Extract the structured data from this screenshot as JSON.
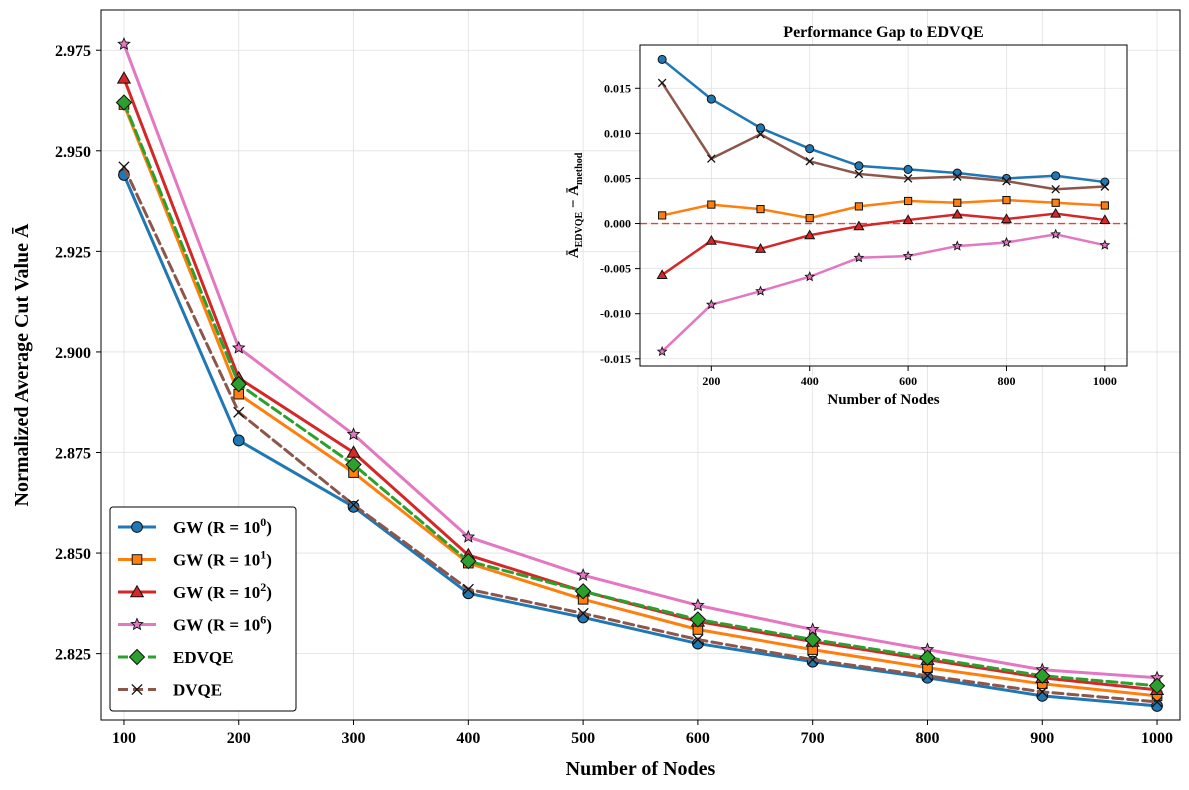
{
  "chart_data": [
    {
      "type": "line",
      "title": "",
      "xlabel": "Number of Nodes",
      "ylabel": "Normalized Average Cut Value Ā",
      "x": [
        100,
        200,
        300,
        400,
        500,
        600,
        700,
        800,
        900,
        1000
      ],
      "xlim": [
        80,
        1020
      ],
      "ylim": [
        2.8085,
        2.985
      ],
      "xticks": [
        100,
        200,
        300,
        400,
        500,
        600,
        700,
        800,
        900,
        1000
      ],
      "yticks": [
        2.825,
        2.85,
        2.875,
        2.9,
        2.925,
        2.95,
        2.975
      ],
      "grid": true,
      "legend_position": "lower-left",
      "series": [
        {
          "name": "GW (R = 10⁰)",
          "legend_base": "GW (R = 10",
          "legend_exp": "0",
          "legend_end": ")",
          "color": "#1f77b4",
          "dash": "solid",
          "marker": "circle",
          "values": [
            2.944,
            2.878,
            2.8615,
            2.84,
            2.834,
            2.8275,
            2.823,
            2.819,
            2.8145,
            2.812
          ]
        },
        {
          "name": "GW (R = 10¹)",
          "legend_base": "GW (R = 10",
          "legend_exp": "1",
          "legend_end": ")",
          "color": "#ff7f0e",
          "dash": "solid",
          "marker": "square",
          "values": [
            2.9615,
            2.8895,
            2.87,
            2.8475,
            2.8385,
            2.831,
            2.826,
            2.8215,
            2.8175,
            2.8145
          ]
        },
        {
          "name": "GW (R = 10²)",
          "legend_base": "GW (R = 10",
          "legend_exp": "2",
          "legend_end": ")",
          "color": "#d62728",
          "dash": "solid",
          "marker": "triangle",
          "values": [
            2.968,
            2.8935,
            2.875,
            2.8495,
            2.8405,
            2.833,
            2.828,
            2.8235,
            2.819,
            2.816
          ]
        },
        {
          "name": "GW (R = 10⁶)",
          "legend_base": "GW (R = 10",
          "legend_exp": "6",
          "legend_end": ")",
          "color": "#e377c2",
          "dash": "solid",
          "marker": "star",
          "values": [
            2.9765,
            2.901,
            2.8795,
            2.854,
            2.8445,
            2.837,
            2.831,
            2.826,
            2.821,
            2.819
          ]
        },
        {
          "name": "EDVQE",
          "legend_base": "EDVQE",
          "legend_exp": "",
          "legend_end": "",
          "color": "#2ca02c",
          "dash": "dashed",
          "marker": "diamond",
          "values": [
            2.962,
            2.892,
            2.872,
            2.848,
            2.8405,
            2.8335,
            2.8285,
            2.824,
            2.8195,
            2.817
          ]
        },
        {
          "name": "DVQE",
          "legend_base": "DVQE",
          "legend_exp": "",
          "legend_end": "",
          "color": "#8c564b",
          "dash": "dashed",
          "marker": "x",
          "values": [
            2.946,
            2.885,
            2.862,
            2.841,
            2.835,
            2.8285,
            2.8235,
            2.8195,
            2.8155,
            2.813
          ]
        }
      ]
    },
    {
      "type": "line",
      "title": "Performance Gap to EDVQE",
      "xlabel": "Number of Nodes",
      "ylabel": "Ā_EDVQE − Ā_method",
      "ylabel_parts": [
        "Ā",
        "EDVQE",
        " − Ā",
        "method"
      ],
      "x": [
        100,
        200,
        300,
        400,
        500,
        600,
        700,
        800,
        900,
        1000
      ],
      "xlim": [
        55,
        1045
      ],
      "ylim": [
        -0.0158,
        0.0198
      ],
      "xticks": [
        200,
        400,
        600,
        800,
        1000
      ],
      "yticks": [
        -0.015,
        -0.01,
        -0.005,
        0.0,
        0.005,
        0.01,
        0.015
      ],
      "ytick_labels": [
        "-0.015",
        "-0.010",
        "-0.005",
        "0.000",
        "0.005",
        "0.010",
        "0.015"
      ],
      "grid": true,
      "reference_line": {
        "y": 0,
        "color": "#e8403a",
        "dash": "dashed"
      },
      "series": [
        {
          "name": "GW (R = 10⁰)",
          "color": "#1f77b4",
          "marker": "circle",
          "values": [
            0.0182,
            0.0138,
            0.0106,
            0.0083,
            0.0064,
            0.006,
            0.0056,
            0.005,
            0.0053,
            0.0046
          ]
        },
        {
          "name": "GW (R = 10¹)",
          "color": "#ff7f0e",
          "marker": "square",
          "values": [
            0.0009,
            0.0021,
            0.0016,
            0.0006,
            0.0019,
            0.0025,
            0.0023,
            0.0026,
            0.0023,
            0.002
          ]
        },
        {
          "name": "GW (R = 10²)",
          "color": "#d62728",
          "marker": "triangle",
          "values": [
            -0.0057,
            -0.0019,
            -0.0028,
            -0.0013,
            -0.0003,
            0.0004,
            0.001,
            0.0005,
            0.0011,
            0.0004
          ]
        },
        {
          "name": "GW (R = 10⁶)",
          "color": "#e377c2",
          "marker": "star",
          "values": [
            -0.0142,
            -0.009,
            -0.0075,
            -0.0059,
            -0.0038,
            -0.0036,
            -0.0025,
            -0.0021,
            -0.0012,
            -0.0024
          ]
        },
        {
          "name": "DVQE",
          "color": "#8c564b",
          "marker": "x",
          "values": [
            0.0156,
            0.0072,
            0.0099,
            0.0069,
            0.0055,
            0.005,
            0.0052,
            0.0047,
            0.0038,
            0.0041
          ]
        }
      ]
    }
  ]
}
